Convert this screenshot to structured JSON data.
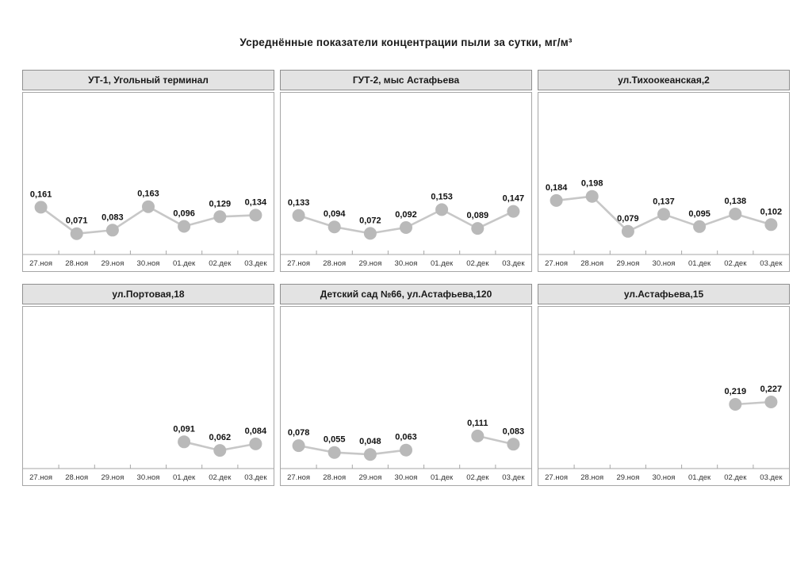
{
  "page": {
    "title": "Усреднённые показатели концентрации пыли за сутки, мг/м³"
  },
  "colors": {
    "marker": "#b9b9b9",
    "line": "#c7c7c7",
    "axis": "#a6a6a6",
    "header_bg": "#e3e3e3",
    "header_border": "#8f8f8f",
    "data_label": "#111111",
    "tick_label": "#333333"
  },
  "chart_data": [
    {
      "type": "line",
      "title": "УТ-1, Угольный терминал",
      "categories": [
        "27.ноя",
        "28.ноя",
        "29.ноя",
        "30.ноя",
        "01.дек",
        "02.дек",
        "03.дек"
      ],
      "values": [
        0.161,
        0.071,
        0.083,
        0.163,
        0.096,
        0.129,
        0.134
      ],
      "labels": [
        "0,161",
        "0,071",
        "0,083",
        "0,163",
        "0,096",
        "0,129",
        "0,134"
      ],
      "xlabel": "",
      "ylabel": "",
      "ylim": [
        0,
        0.55
      ],
      "grid": false,
      "legend": false
    },
    {
      "type": "line",
      "title": "ГУТ-2, мыс Астафьева",
      "categories": [
        "27.ноя",
        "28.ноя",
        "29.ноя",
        "30.ноя",
        "01.дек",
        "02.дек",
        "03.дек"
      ],
      "values": [
        0.133,
        0.094,
        0.072,
        0.092,
        0.153,
        0.089,
        0.147
      ],
      "labels": [
        "0,133",
        "0,094",
        "0,072",
        "0,092",
        "0,153",
        "0,089",
        "0,147"
      ],
      "xlabel": "",
      "ylabel": "",
      "ylim": [
        0,
        0.55
      ],
      "grid": false,
      "legend": false
    },
    {
      "type": "line",
      "title": "ул.Тихоокеанская,2",
      "categories": [
        "27.ноя",
        "28.ноя",
        "29.ноя",
        "30.ноя",
        "01.дек",
        "02.дек",
        "03.дек"
      ],
      "values": [
        0.184,
        0.198,
        0.079,
        0.137,
        0.095,
        0.138,
        0.102
      ],
      "labels": [
        "0,184",
        "0,198",
        "0,079",
        "0,137",
        "0,095",
        "0,138",
        "0,102"
      ],
      "xlabel": "",
      "ylabel": "",
      "ylim": [
        0,
        0.55
      ],
      "grid": false,
      "legend": false
    },
    {
      "type": "line",
      "title": "ул.Портовая,18",
      "categories": [
        "27.ноя",
        "28.ноя",
        "29.ноя",
        "30.ноя",
        "01.дек",
        "02.дек",
        "03.дек"
      ],
      "values": [
        null,
        null,
        null,
        null,
        0.091,
        0.062,
        0.084
      ],
      "labels": [
        null,
        null,
        null,
        null,
        "0,091",
        "0,062",
        "0,084"
      ],
      "xlabel": "",
      "ylabel": "",
      "ylim": [
        0,
        0.55
      ],
      "grid": false,
      "legend": false
    },
    {
      "type": "line",
      "title": "Детский сад №66, ул.Астафьева,120",
      "categories": [
        "27.ноя",
        "28.ноя",
        "29.ноя",
        "30.ноя",
        "01.дек",
        "02.дек",
        "03.дек"
      ],
      "values": [
        0.078,
        0.055,
        0.048,
        0.063,
        null,
        0.111,
        0.083
      ],
      "labels": [
        "0,078",
        "0,055",
        "0,048",
        "0,063",
        null,
        "0,111",
        "0,083"
      ],
      "xlabel": "",
      "ylabel": "",
      "ylim": [
        0,
        0.55
      ],
      "grid": false,
      "legend": false
    },
    {
      "type": "line",
      "title": "ул.Астафьева,15",
      "categories": [
        "27.ноя",
        "28.ноя",
        "29.ноя",
        "30.ноя",
        "01.дек",
        "02.дек",
        "03.дек"
      ],
      "values": [
        null,
        null,
        null,
        null,
        null,
        0.219,
        0.227
      ],
      "labels": [
        null,
        null,
        null,
        null,
        null,
        "0,219",
        "0,227"
      ],
      "xlabel": "",
      "ylabel": "",
      "ylim": [
        0,
        0.55
      ],
      "grid": false,
      "legend": false
    }
  ]
}
